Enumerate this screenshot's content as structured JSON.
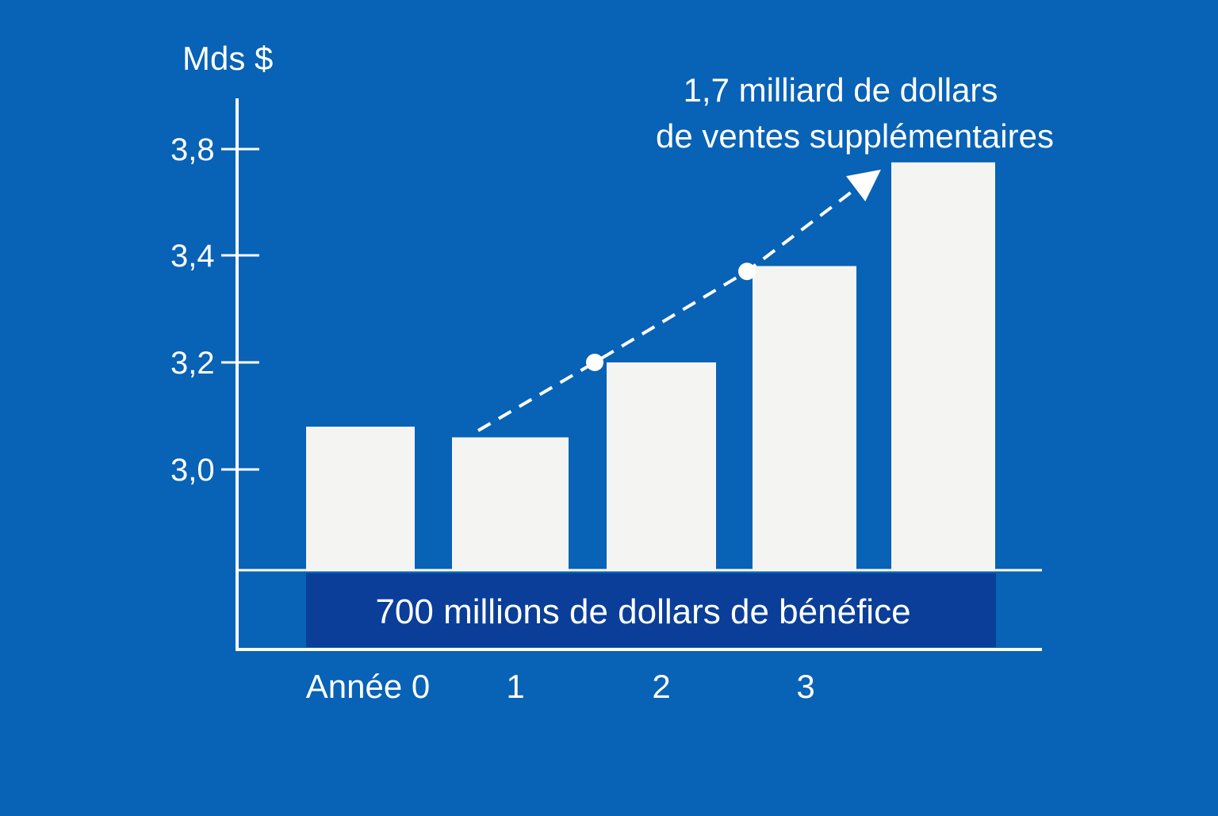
{
  "colors": {
    "background": "#0862b6",
    "bar": "#f4f4f2",
    "axis": "#ffffff",
    "text": "#ffffff",
    "profit_banner": "#0a3e99"
  },
  "chart_data": {
    "type": "bar",
    "ylabel": "Mds $",
    "yticks": [
      "3,0",
      "3,2",
      "3,4",
      "3,8"
    ],
    "categories": [
      "Année 0",
      "1",
      "2",
      "3",
      ""
    ],
    "values": [
      3.08,
      3.06,
      3.2,
      3.38,
      3.75
    ],
    "trend_points": [
      3.2,
      3.37
    ],
    "annotation_lines": [
      "1,7 milliard de dollars",
      "de ventes supplémentaires"
    ],
    "profit_label": "700 millions de dollars de bénéfice",
    "grid": false,
    "legend": "none"
  }
}
